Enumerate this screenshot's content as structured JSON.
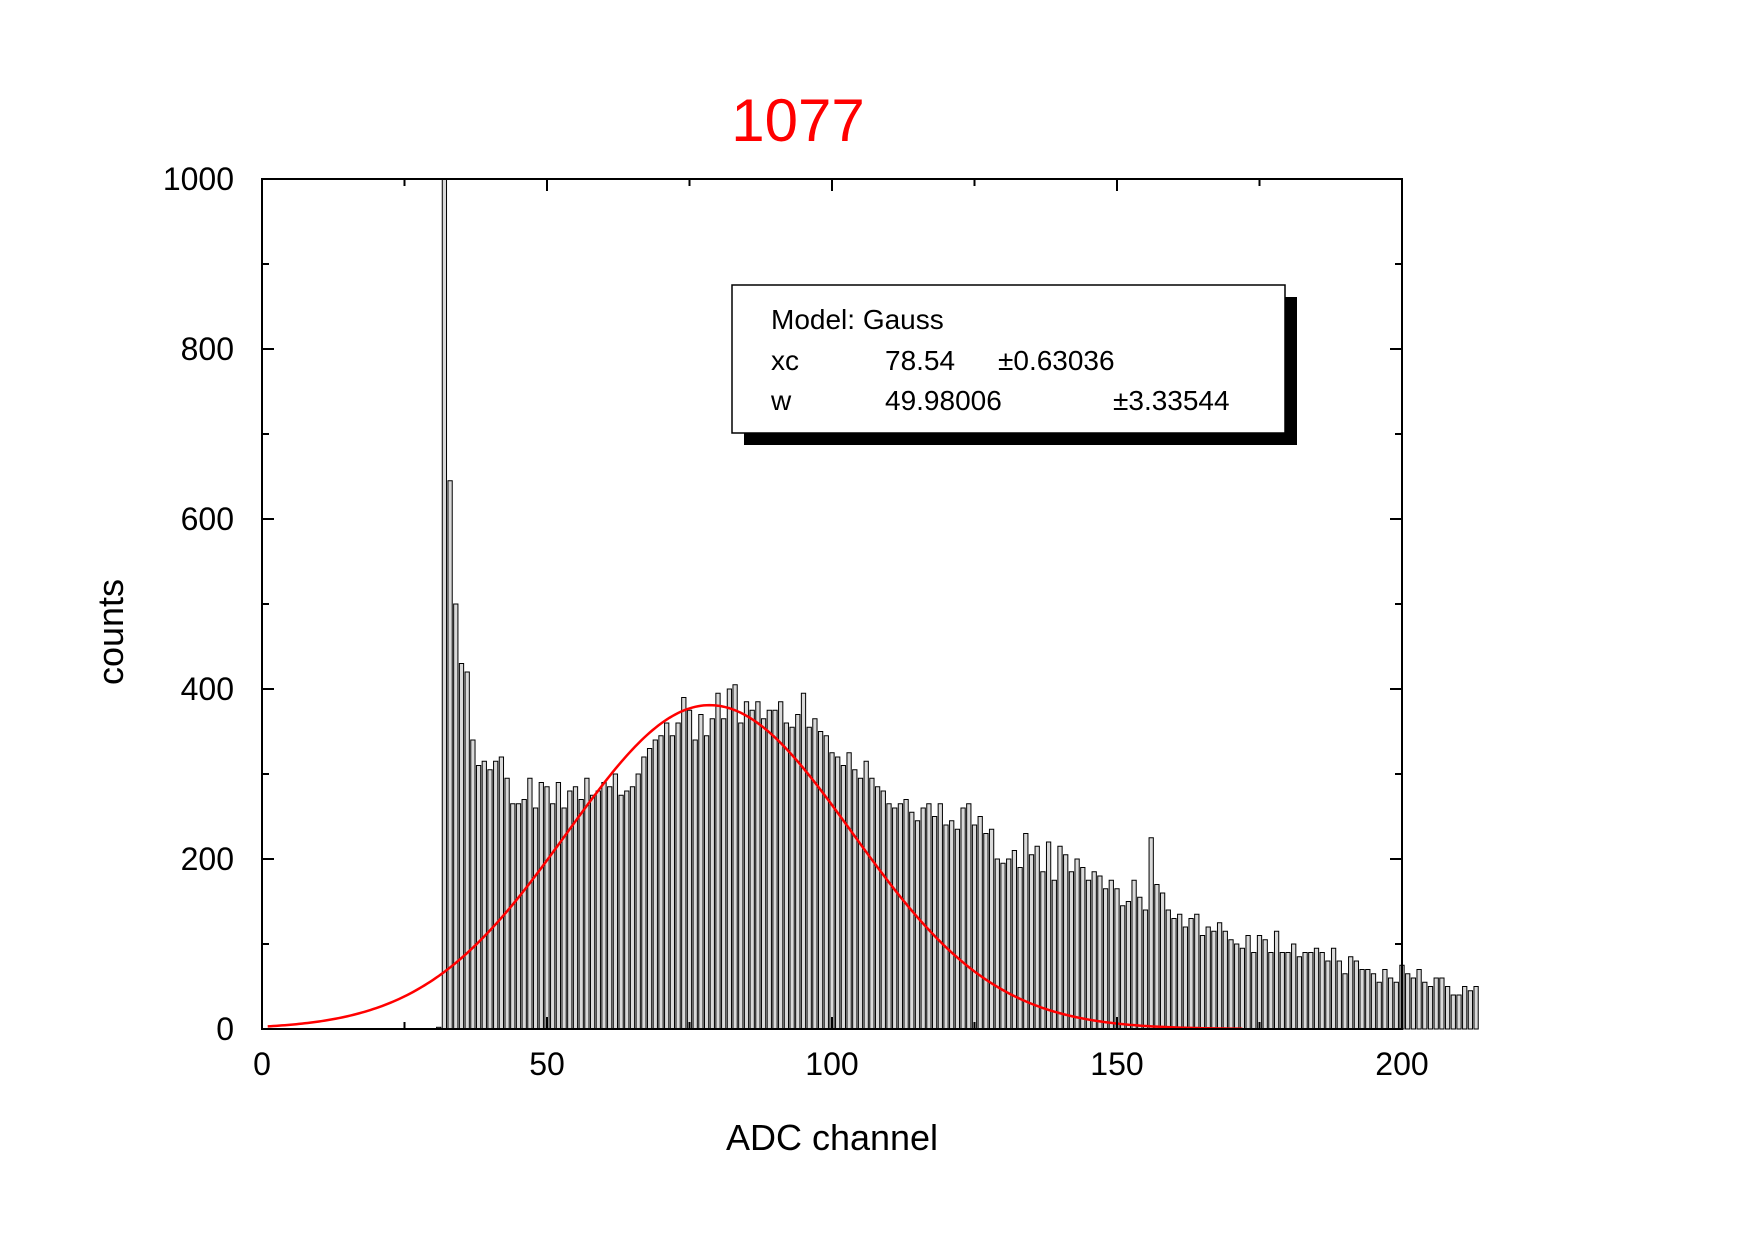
{
  "chart_data": {
    "type": "bar",
    "title": "1077",
    "title_color": "#ff0000",
    "xlabel": "ADC channel",
    "ylabel": "counts",
    "xlim": [
      0,
      200
    ],
    "ylim": [
      0,
      1000
    ],
    "x_ticks": [
      0,
      50,
      100,
      150,
      200
    ],
    "y_ticks": [
      0,
      200,
      400,
      600,
      800,
      1000
    ],
    "x_tick_labels": [
      "0",
      "50",
      "100",
      "150",
      "200"
    ],
    "y_tick_labels": [
      "0",
      "200",
      "400",
      "600",
      "800",
      "1000"
    ],
    "grid": false,
    "bar_fill": "#d9d9d9",
    "bar_edge": "#000000",
    "series": [
      {
        "name": "counts",
        "x_start": 31,
        "x_step": 1,
        "values": [
          2,
          1000,
          645,
          500,
          430,
          420,
          340,
          310,
          315,
          305,
          315,
          320,
          295,
          265,
          265,
          270,
          295,
          260,
          290,
          285,
          265,
          290,
          260,
          280,
          285,
          270,
          295,
          275,
          280,
          290,
          285,
          300,
          275,
          280,
          285,
          300,
          320,
          330,
          340,
          345,
          360,
          345,
          360,
          390,
          375,
          340,
          370,
          345,
          365,
          395,
          365,
          400,
          405,
          360,
          385,
          375,
          385,
          365,
          375,
          375,
          385,
          360,
          355,
          370,
          395,
          355,
          365,
          350,
          345,
          325,
          320,
          310,
          325,
          305,
          295,
          315,
          295,
          285,
          280,
          265,
          260,
          265,
          270,
          255,
          245,
          260,
          265,
          250,
          265,
          240,
          245,
          235,
          260,
          265,
          240,
          250,
          230,
          235,
          200,
          195,
          200,
          210,
          190,
          230,
          205,
          215,
          185,
          220,
          175,
          215,
          205,
          185,
          200,
          190,
          175,
          185,
          180,
          165,
          175,
          165,
          145,
          150,
          175,
          155,
          140,
          225,
          170,
          160,
          140,
          130,
          135,
          120,
          130,
          135,
          110,
          120,
          115,
          125,
          115,
          105,
          100,
          95,
          110,
          90,
          110,
          105,
          90,
          115,
          90,
          90,
          100,
          85,
          90,
          90,
          95,
          90,
          80,
          95,
          80,
          65,
          85,
          80,
          70,
          70,
          65,
          55,
          70,
          60,
          55,
          75,
          65,
          60,
          70,
          55,
          50,
          60,
          60,
          50,
          40,
          40,
          50,
          45,
          50
        ]
      }
    ],
    "fit": {
      "model": "Gauss",
      "line_color": "#ff0000",
      "xc": 78.54,
      "w": 49.98006,
      "A_peak": 381,
      "x_range": [
        1,
        172
      ]
    },
    "legend": {
      "placement": "top-right",
      "line1": "Model: Gauss",
      "rows": [
        {
          "param": "xc",
          "value": "78.54",
          "error": "±0.63036"
        },
        {
          "param": "w",
          "value": "49.98006",
          "error": "±3.33544"
        }
      ]
    }
  }
}
